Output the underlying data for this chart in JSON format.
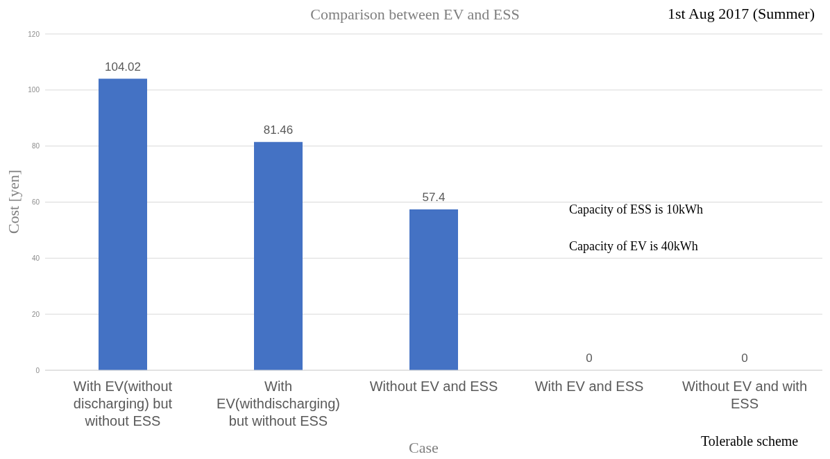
{
  "chart_data": {
    "type": "bar",
    "title": "Comparison between EV and ESS",
    "subtitle": "1st Aug 2017 (Summer)",
    "xlabel": "Case",
    "ylabel": "Cost [yen]",
    "categories": [
      "With EV(without discharging) but without ESS",
      "With EV(withdischarging) but without ESS",
      "Without EV and ESS",
      "With EV and ESS",
      "Without EV and with ESS"
    ],
    "values": [
      104.02,
      81.46,
      57.4,
      0,
      0
    ],
    "color": "#4472c4",
    "ylim": [
      0,
      120
    ],
    "yticks": [
      0,
      20,
      40,
      60,
      80,
      100,
      120
    ],
    "grid": "y",
    "data_labels": true,
    "annotations": [
      "Capacity of ESS is 10kWh",
      "Capacity of EV is 40kWh",
      "Tolerable scheme"
    ]
  }
}
